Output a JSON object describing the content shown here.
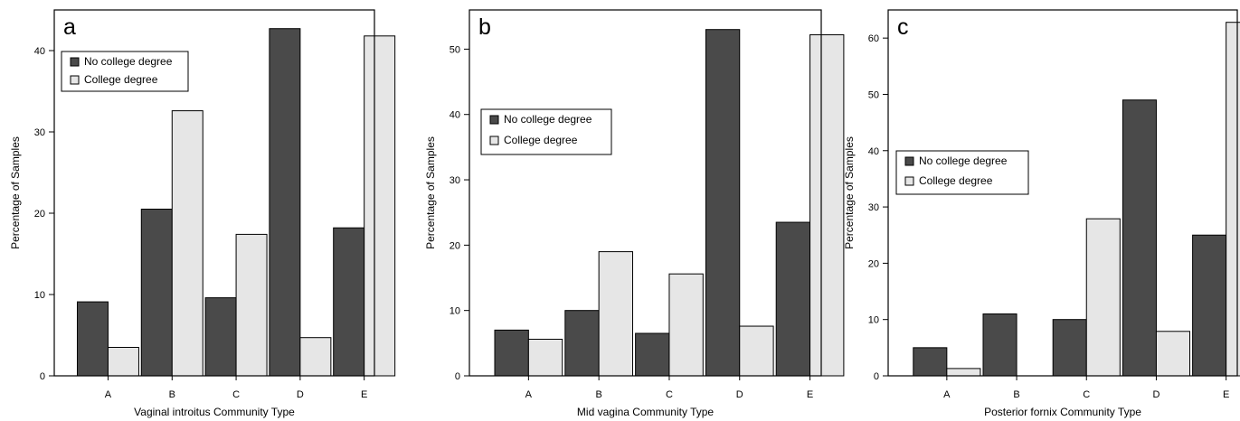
{
  "colors": {
    "no_college": "#4a4a4a",
    "college": "#e6e6e6"
  },
  "chart_data": [
    {
      "type": "bar",
      "panel_label": "a",
      "categories": [
        "A",
        "B",
        "C",
        "D",
        "E"
      ],
      "series": [
        {
          "name": "No college degree",
          "values": [
            9.1,
            20.5,
            9.6,
            42.7,
            18.2
          ]
        },
        {
          "name": "College degree",
          "values": [
            3.5,
            32.6,
            17.4,
            4.7,
            41.8
          ]
        }
      ],
      "xlabel": "Vaginal introitus Community Type",
      "ylabel": "Percentage of Samples",
      "ylim": [
        0,
        45
      ],
      "yticks": [
        0,
        10,
        20,
        30,
        40
      ],
      "legend_position": "upper-left",
      "grid": false
    },
    {
      "type": "bar",
      "panel_label": "b",
      "categories": [
        "A",
        "B",
        "C",
        "D",
        "E"
      ],
      "series": [
        {
          "name": "No college degree",
          "values": [
            7.0,
            10.0,
            6.5,
            53.0,
            23.5
          ]
        },
        {
          "name": "College degree",
          "values": [
            5.6,
            19.0,
            15.6,
            7.6,
            52.2
          ]
        }
      ],
      "xlabel": "Mid vagina Community Type",
      "ylabel": "Percentage of Samples",
      "ylim": [
        0,
        56
      ],
      "yticks": [
        0,
        10,
        20,
        30,
        40,
        50
      ],
      "legend_position": "middle-left",
      "grid": false
    },
    {
      "type": "bar",
      "panel_label": "c",
      "categories": [
        "A",
        "B",
        "C",
        "D",
        "E"
      ],
      "series": [
        {
          "name": "No college degree",
          "values": [
            5.0,
            11.0,
            10.0,
            49.0,
            25.0
          ]
        },
        {
          "name": "College degree",
          "values": [
            1.3,
            0.0,
            27.9,
            7.9,
            62.8
          ]
        }
      ],
      "xlabel": "Posterior fornix Community Type",
      "ylabel": "Percentage of Samples",
      "ylim": [
        0,
        65
      ],
      "yticks": [
        0,
        10,
        20,
        30,
        40,
        50,
        60
      ],
      "legend_position": "middle-left",
      "grid": false
    }
  ]
}
